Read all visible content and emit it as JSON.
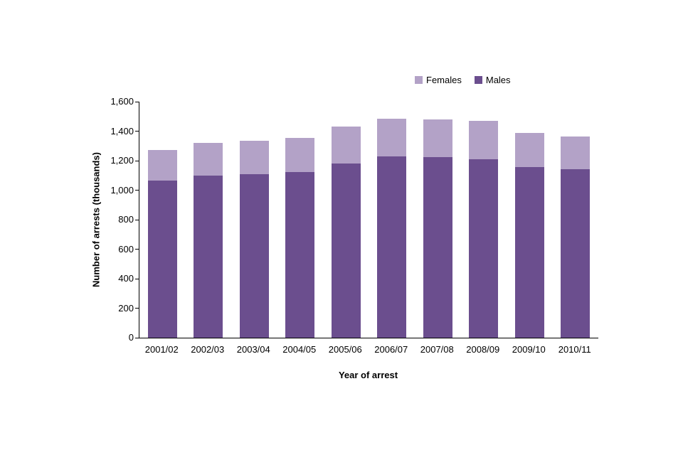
{
  "chart_data": {
    "type": "bar",
    "stacked": true,
    "title": "",
    "xlabel": "Year of arrest",
    "ylabel": "Number of arrests (thousands)",
    "ylim": [
      0,
      1600
    ],
    "ytick_step": 200,
    "yticks": [
      0,
      200,
      400,
      600,
      800,
      1000,
      1200,
      1400,
      1600
    ],
    "grid": false,
    "legend_position": "top-right",
    "categories": [
      "2001/02",
      "2002/03",
      "2003/04",
      "2004/05",
      "2005/06",
      "2006/07",
      "2007/08",
      "2008/09",
      "2009/10",
      "2010/11"
    ],
    "series": [
      {
        "name": "Males",
        "color": "#6B4E8E",
        "values": [
          1065,
          1100,
          1110,
          1125,
          1180,
          1230,
          1225,
          1210,
          1155,
          1140
        ]
      },
      {
        "name": "Females",
        "color": "#B3A2C7",
        "values": [
          205,
          220,
          225,
          230,
          250,
          255,
          255,
          260,
          235,
          225
        ]
      }
    ],
    "legend_order": [
      "Females",
      "Males"
    ]
  },
  "colors": {
    "males": "#6B4E8E",
    "females": "#B3A2C7",
    "axis": "#000000",
    "background": "#FFFFFF"
  }
}
